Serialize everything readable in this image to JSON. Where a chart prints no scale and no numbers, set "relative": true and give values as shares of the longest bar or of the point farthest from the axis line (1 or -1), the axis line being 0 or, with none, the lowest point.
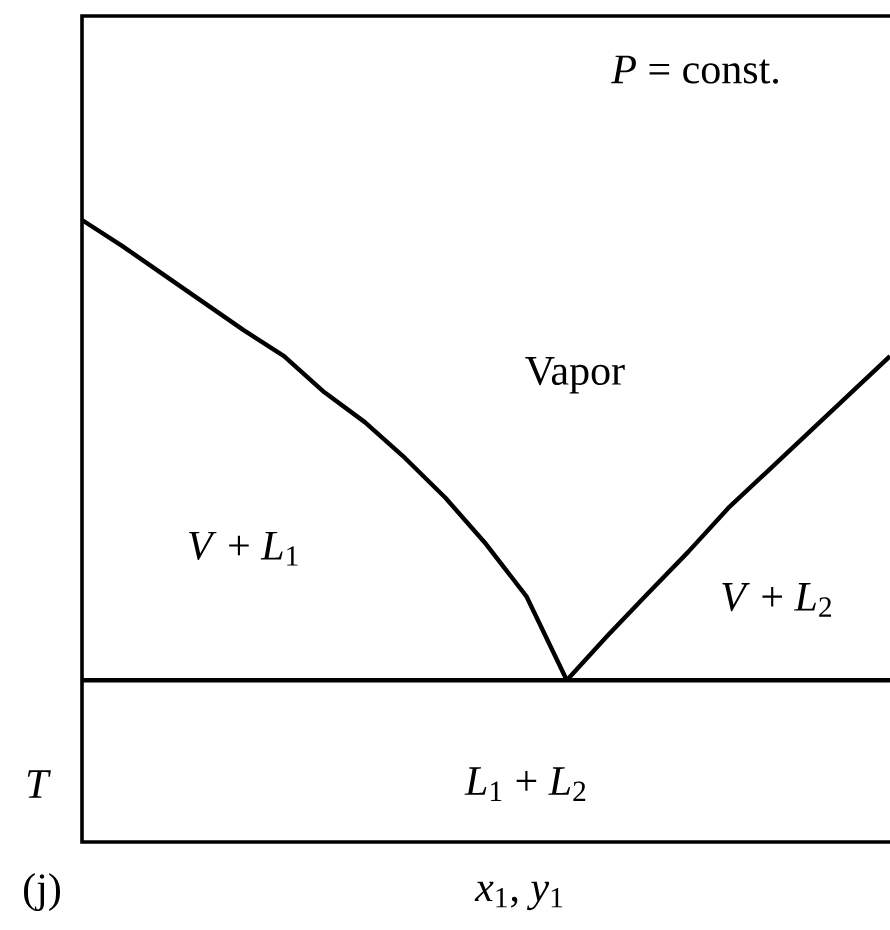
{
  "chart_data": {
    "type": "line",
    "relative": true,
    "ylabel": "*T*",
    "xlabel": "*x*$_{1}$, *y*$_{1}$",
    "categories": [
      null,
      null,
      null,
      null,
      null,
      null,
      null,
      null,
      null,
      null,
      null,
      null,
      null,
      null,
      null,
      null,
      null,
      null,
      null,
      null,
      null
    ],
    "series": [
      {
        "color": "#000000",
        "values": [
          1,
          0.958,
          0.913,
          0.868,
          0.823,
          0.781,
          0.723,
          0.675,
          0.617,
          0.553,
          0.479,
          0.395,
          0.26,
          null,
          null,
          null,
          null,
          null,
          null,
          null,
          null
        ]
      },
      {
        "color": "#000000",
        "values": [
          null,
          null,
          null,
          null,
          null,
          null,
          null,
          null,
          null,
          null,
          null,
          null,
          0.26,
          0.331,
          0.399,
          0.466,
          0.537,
          0.598,
          0.659,
          0.72,
          0.781
        ]
      },
      {
        "color": "#000000",
        "values": [
          0.26,
          0.26,
          0.26,
          0.26,
          0.26,
          0.26,
          0.26,
          0.26,
          0.26,
          0.26,
          0.26,
          0.26,
          0.26,
          0.26,
          0.26,
          0.26,
          0.26,
          0.26,
          0.26,
          0.26,
          0.26
        ]
      }
    ],
    "annotations": [
      "*P* = const.",
      "Vapor",
      "*V* + *L*$_{1}$",
      "*V* + *L*$_{2}$",
      "*L*$_{1}$ + *L*$_{2}$",
      "(j)"
    ]
  }
}
